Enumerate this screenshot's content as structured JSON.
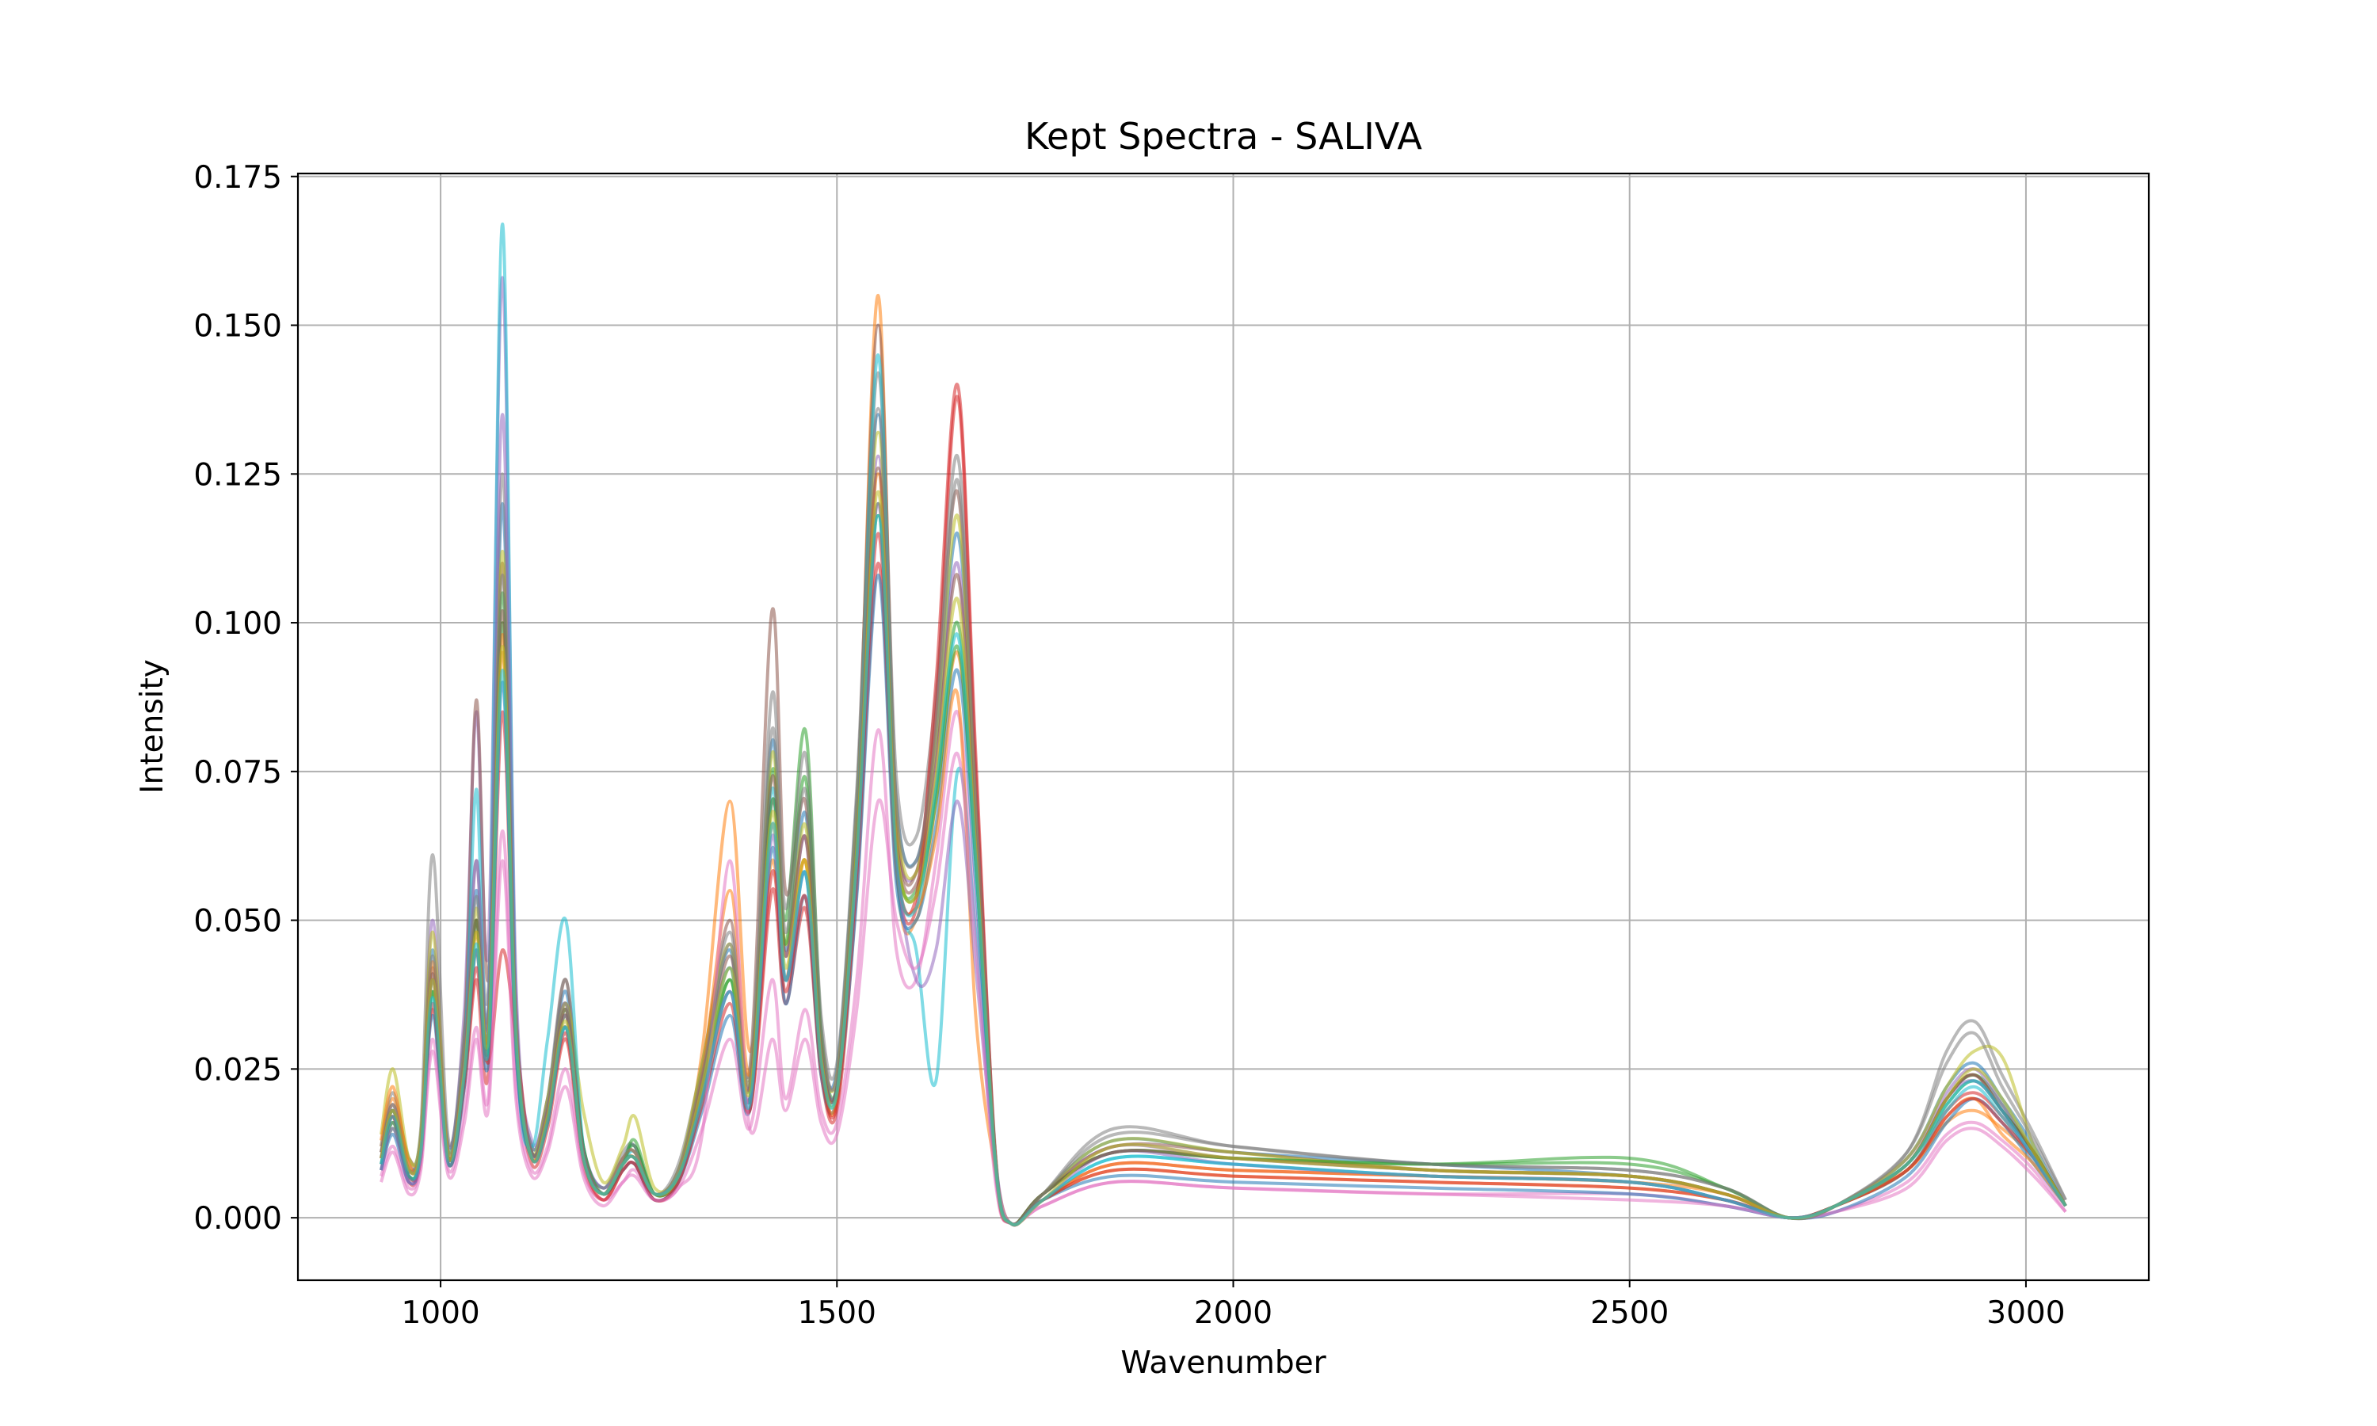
{
  "chart_data": {
    "type": "line",
    "title": "Kept Spectra - SALIVA",
    "xlabel": "Wavenumber",
    "ylabel": "Intensity",
    "xlim": [
      820,
      3155
    ],
    "ylim": [
      -0.0105,
      0.1755
    ],
    "xticks": [
      1000,
      1500,
      2000,
      2500,
      3000
    ],
    "xtick_labels": [
      "1000",
      "1500",
      "2000",
      "2500",
      "3000"
    ],
    "yticks": [
      0.0,
      0.025,
      0.05,
      0.075,
      0.1,
      0.125,
      0.15,
      0.175
    ],
    "ytick_labels": [
      "0.000",
      "0.025",
      "0.050",
      "0.075",
      "0.100",
      "0.125",
      "0.150",
      "0.175"
    ],
    "grid": true,
    "legend": false,
    "series_opacity": 0.55,
    "x": [
      925,
      940,
      960,
      975,
      990,
      1010,
      1030,
      1045,
      1060,
      1078,
      1095,
      1115,
      1135,
      1158,
      1180,
      1205,
      1230,
      1245,
      1270,
      1300,
      1330,
      1365,
      1390,
      1418,
      1435,
      1460,
      1480,
      1500,
      1525,
      1552,
      1575,
      1600,
      1625,
      1652,
      1675,
      1700,
      1720,
      1760,
      1850,
      2000,
      2250,
      2500,
      2620,
      2700,
      2760,
      2850,
      2900,
      2935,
      2970,
      3010,
      3050
    ],
    "series": [
      {
        "color": "#1f77b4",
        "values": [
          0.01,
          0.018,
          0.008,
          0.014,
          0.045,
          0.012,
          0.03,
          0.055,
          0.035,
          0.12,
          0.035,
          0.012,
          0.02,
          0.038,
          0.012,
          0.005,
          0.01,
          0.012,
          0.004,
          0.008,
          0.025,
          0.045,
          0.02,
          0.08,
          0.045,
          0.068,
          0.03,
          0.025,
          0.07,
          0.135,
          0.07,
          0.06,
          0.08,
          0.115,
          0.07,
          0.01,
          -0.001,
          0.004,
          0.013,
          0.011,
          0.009,
          0.007,
          0.004,
          0.0,
          0.002,
          0.01,
          0.022,
          0.026,
          0.02,
          0.012,
          0.002
        ]
      },
      {
        "color": "#ff7f0e",
        "values": [
          0.012,
          0.02,
          0.01,
          0.012,
          0.04,
          0.01,
          0.025,
          0.045,
          0.028,
          0.095,
          0.03,
          0.01,
          0.018,
          0.032,
          0.01,
          0.004,
          0.009,
          0.01,
          0.003,
          0.007,
          0.028,
          0.07,
          0.028,
          0.06,
          0.04,
          0.06,
          0.026,
          0.02,
          0.065,
          0.155,
          0.06,
          0.05,
          0.07,
          0.095,
          0.06,
          0.008,
          -0.001,
          0.003,
          0.008,
          0.007,
          0.006,
          0.005,
          0.003,
          0.0,
          0.002,
          0.008,
          0.016,
          0.018,
          0.015,
          0.01,
          0.002
        ]
      },
      {
        "color": "#2ca02c",
        "values": [
          0.008,
          0.015,
          0.007,
          0.011,
          0.038,
          0.011,
          0.028,
          0.05,
          0.03,
          0.1,
          0.032,
          0.011,
          0.017,
          0.035,
          0.011,
          0.004,
          0.009,
          0.012,
          0.004,
          0.007,
          0.022,
          0.04,
          0.022,
          0.075,
          0.05,
          0.082,
          0.032,
          0.022,
          0.062,
          0.12,
          0.062,
          0.055,
          0.072,
          0.1,
          0.062,
          0.009,
          -0.001,
          0.004,
          0.011,
          0.01,
          0.009,
          0.01,
          0.005,
          0.0,
          0.002,
          0.009,
          0.02,
          0.024,
          0.019,
          0.011,
          0.002
        ]
      },
      {
        "color": "#d62728",
        "values": [
          0.01,
          0.017,
          0.006,
          0.01,
          0.035,
          0.009,
          0.022,
          0.04,
          0.024,
          0.085,
          0.028,
          0.009,
          0.015,
          0.03,
          0.009,
          0.003,
          0.008,
          0.009,
          0.003,
          0.006,
          0.02,
          0.038,
          0.018,
          0.055,
          0.036,
          0.052,
          0.024,
          0.018,
          0.055,
          0.11,
          0.058,
          0.052,
          0.085,
          0.138,
          0.075,
          0.01,
          -0.001,
          0.003,
          0.009,
          0.008,
          0.007,
          0.006,
          0.003,
          0.0,
          0.002,
          0.008,
          0.018,
          0.021,
          0.017,
          0.01,
          0.002
        ]
      },
      {
        "color": "#9467bd",
        "values": [
          0.009,
          0.016,
          0.008,
          0.013,
          0.05,
          0.012,
          0.035,
          0.085,
          0.045,
          0.158,
          0.04,
          0.013,
          0.02,
          0.036,
          0.012,
          0.005,
          0.01,
          0.011,
          0.004,
          0.008,
          0.024,
          0.042,
          0.022,
          0.07,
          0.044,
          0.064,
          0.03,
          0.024,
          0.066,
          0.128,
          0.066,
          0.058,
          0.078,
          0.11,
          0.066,
          0.01,
          -0.001,
          0.004,
          0.012,
          0.01,
          0.008,
          0.007,
          0.004,
          0.0,
          0.002,
          0.01,
          0.021,
          0.025,
          0.019,
          0.011,
          0.002
        ]
      },
      {
        "color": "#8c564b",
        "values": [
          0.011,
          0.019,
          0.009,
          0.012,
          0.042,
          0.01,
          0.03,
          0.087,
          0.04,
          0.11,
          0.034,
          0.011,
          0.018,
          0.04,
          0.011,
          0.004,
          0.009,
          0.01,
          0.004,
          0.007,
          0.025,
          0.05,
          0.025,
          0.102,
          0.055,
          0.07,
          0.03,
          0.022,
          0.068,
          0.15,
          0.068,
          0.058,
          0.085,
          0.122,
          0.068,
          0.01,
          -0.001,
          0.004,
          0.012,
          0.011,
          0.008,
          0.007,
          0.004,
          0.0,
          0.002,
          0.009,
          0.02,
          0.024,
          0.018,
          0.011,
          0.002
        ]
      },
      {
        "color": "#e377c2",
        "values": [
          0.007,
          0.012,
          0.005,
          0.009,
          0.03,
          0.008,
          0.018,
          0.032,
          0.02,
          0.065,
          0.022,
          0.008,
          0.012,
          0.025,
          0.008,
          0.003,
          0.006,
          0.008,
          0.003,
          0.005,
          0.015,
          0.03,
          0.015,
          0.04,
          0.02,
          0.035,
          0.018,
          0.016,
          0.04,
          0.082,
          0.045,
          0.04,
          0.06,
          0.085,
          0.05,
          0.007,
          -0.001,
          0.002,
          0.006,
          0.005,
          0.004,
          0.004,
          0.002,
          0.0,
          0.001,
          0.006,
          0.014,
          0.016,
          0.013,
          0.008,
          0.001
        ]
      },
      {
        "color": "#7f7f7f",
        "values": [
          0.012,
          0.021,
          0.01,
          0.015,
          0.061,
          0.013,
          0.032,
          0.06,
          0.038,
          0.125,
          0.036,
          0.012,
          0.02,
          0.04,
          0.012,
          0.005,
          0.011,
          0.012,
          0.004,
          0.009,
          0.026,
          0.048,
          0.024,
          0.088,
          0.052,
          0.078,
          0.034,
          0.026,
          0.072,
          0.142,
          0.074,
          0.064,
          0.088,
          0.128,
          0.074,
          0.011,
          -0.001,
          0.004,
          0.015,
          0.012,
          0.009,
          0.008,
          0.005,
          0.0,
          0.002,
          0.011,
          0.028,
          0.033,
          0.024,
          0.014,
          0.003
        ]
      },
      {
        "color": "#bcbd22",
        "values": [
          0.014,
          0.025,
          0.01,
          0.014,
          0.048,
          0.011,
          0.028,
          0.052,
          0.034,
          0.112,
          0.034,
          0.011,
          0.02,
          0.036,
          0.018,
          0.006,
          0.012,
          0.017,
          0.005,
          0.008,
          0.026,
          0.046,
          0.023,
          0.078,
          0.046,
          0.066,
          0.03,
          0.024,
          0.068,
          0.132,
          0.068,
          0.058,
          0.08,
          0.118,
          0.068,
          0.01,
          -0.001,
          0.004,
          0.013,
          0.011,
          0.008,
          0.007,
          0.004,
          0.0,
          0.002,
          0.01,
          0.022,
          0.028,
          0.027,
          0.012,
          0.002
        ]
      },
      {
        "color": "#17becf",
        "values": [
          0.01,
          0.018,
          0.007,
          0.011,
          0.04,
          0.01,
          0.026,
          0.072,
          0.032,
          0.167,
          0.034,
          0.012,
          0.03,
          0.05,
          0.012,
          0.004,
          0.009,
          0.011,
          0.004,
          0.007,
          0.022,
          0.042,
          0.02,
          0.072,
          0.04,
          0.058,
          0.026,
          0.022,
          0.064,
          0.145,
          0.06,
          0.045,
          0.023,
          0.075,
          0.048,
          0.008,
          -0.001,
          0.003,
          0.01,
          0.009,
          0.007,
          0.006,
          0.003,
          0.0,
          0.002,
          0.008,
          0.018,
          0.022,
          0.017,
          0.01,
          0.002
        ]
      },
      {
        "color": "#1f77b4",
        "values": [
          0.008,
          0.014,
          0.006,
          0.01,
          0.034,
          0.009,
          0.022,
          0.045,
          0.026,
          0.09,
          0.028,
          0.01,
          0.016,
          0.032,
          0.01,
          0.004,
          0.008,
          0.009,
          0.003,
          0.006,
          0.018,
          0.034,
          0.018,
          0.062,
          0.036,
          0.054,
          0.024,
          0.02,
          0.054,
          0.108,
          0.056,
          0.05,
          0.066,
          0.092,
          0.056,
          0.008,
          -0.001,
          0.003,
          0.007,
          0.006,
          0.005,
          0.004,
          0.002,
          0.0,
          0.001,
          0.007,
          0.016,
          0.02,
          0.016,
          0.009,
          0.002
        ]
      },
      {
        "color": "#ff7f0e",
        "values": [
          0.013,
          0.022,
          0.009,
          0.012,
          0.043,
          0.01,
          0.026,
          0.048,
          0.03,
          0.098,
          0.032,
          0.01,
          0.018,
          0.034,
          0.011,
          0.004,
          0.01,
          0.011,
          0.004,
          0.007,
          0.024,
          0.055,
          0.024,
          0.066,
          0.04,
          0.06,
          0.026,
          0.02,
          0.06,
          0.125,
          0.06,
          0.052,
          0.064,
          0.088,
          0.034,
          0.008,
          -0.001,
          0.003,
          0.009,
          0.008,
          0.007,
          0.006,
          0.004,
          0.0,
          0.002,
          0.008,
          0.017,
          0.02,
          0.014,
          0.009,
          0.002
        ]
      },
      {
        "color": "#2ca02c",
        "values": [
          0.009,
          0.016,
          0.007,
          0.011,
          0.038,
          0.01,
          0.024,
          0.05,
          0.029,
          0.105,
          0.031,
          0.011,
          0.017,
          0.034,
          0.012,
          0.004,
          0.009,
          0.013,
          0.004,
          0.007,
          0.021,
          0.04,
          0.02,
          0.07,
          0.046,
          0.074,
          0.03,
          0.022,
          0.062,
          0.118,
          0.062,
          0.054,
          0.07,
          0.096,
          0.06,
          0.009,
          -0.001,
          0.004,
          0.011,
          0.01,
          0.009,
          0.009,
          0.005,
          0.0,
          0.002,
          0.009,
          0.019,
          0.023,
          0.018,
          0.011,
          0.002
        ]
      },
      {
        "color": "#d62728",
        "values": [
          0.01,
          0.017,
          0.007,
          0.01,
          0.036,
          0.009,
          0.023,
          0.042,
          0.026,
          0.045,
          0.03,
          0.01,
          0.016,
          0.031,
          0.01,
          0.003,
          0.008,
          0.009,
          0.003,
          0.006,
          0.019,
          0.036,
          0.018,
          0.058,
          0.038,
          0.054,
          0.025,
          0.019,
          0.058,
          0.115,
          0.06,
          0.054,
          0.09,
          0.14,
          0.078,
          0.01,
          -0.001,
          0.003,
          0.008,
          0.007,
          0.006,
          0.005,
          0.003,
          0.0,
          0.002,
          0.008,
          0.017,
          0.02,
          0.016,
          0.01,
          0.002
        ]
      },
      {
        "color": "#9467bd",
        "values": [
          0.008,
          0.015,
          0.006,
          0.011,
          0.04,
          0.01,
          0.026,
          0.06,
          0.034,
          0.135,
          0.036,
          0.011,
          0.018,
          0.034,
          0.011,
          0.004,
          0.009,
          0.01,
          0.004,
          0.007,
          0.021,
          0.038,
          0.02,
          0.064,
          0.04,
          0.058,
          0.028,
          0.022,
          0.06,
          0.12,
          0.062,
          0.04,
          0.045,
          0.07,
          0.042,
          0.009,
          -0.001,
          0.003,
          0.011,
          0.009,
          0.007,
          0.006,
          0.003,
          0.0,
          0.002,
          0.009,
          0.02,
          0.023,
          0.018,
          0.01,
          0.002
        ]
      },
      {
        "color": "#8c564b",
        "values": [
          0.011,
          0.018,
          0.008,
          0.012,
          0.041,
          0.01,
          0.027,
          0.05,
          0.031,
          0.102,
          0.032,
          0.011,
          0.018,
          0.035,
          0.011,
          0.004,
          0.009,
          0.01,
          0.004,
          0.007,
          0.023,
          0.044,
          0.022,
          0.074,
          0.044,
          0.064,
          0.028,
          0.022,
          0.064,
          0.126,
          0.064,
          0.056,
          0.076,
          0.108,
          0.064,
          0.009,
          -0.001,
          0.004,
          0.011,
          0.01,
          0.008,
          0.007,
          0.004,
          0.0,
          0.002,
          0.009,
          0.02,
          0.024,
          0.018,
          0.011,
          0.002
        ]
      },
      {
        "color": "#e377c2",
        "values": [
          0.006,
          0.011,
          0.004,
          0.008,
          0.028,
          0.007,
          0.016,
          0.03,
          0.018,
          0.06,
          0.02,
          0.007,
          0.011,
          0.022,
          0.007,
          0.002,
          0.006,
          0.007,
          0.003,
          0.005,
          0.014,
          0.06,
          0.015,
          0.03,
          0.018,
          0.03,
          0.016,
          0.014,
          0.035,
          0.07,
          0.05,
          0.042,
          0.055,
          0.078,
          0.046,
          0.006,
          -0.001,
          0.002,
          0.006,
          0.005,
          0.004,
          0.003,
          0.002,
          0.0,
          0.001,
          0.005,
          0.013,
          0.015,
          0.012,
          0.007,
          0.001
        ]
      },
      {
        "color": "#7f7f7f",
        "values": [
          0.011,
          0.019,
          0.008,
          0.013,
          0.044,
          0.011,
          0.028,
          0.054,
          0.033,
          0.108,
          0.034,
          0.011,
          0.019,
          0.036,
          0.011,
          0.004,
          0.01,
          0.011,
          0.004,
          0.008,
          0.024,
          0.046,
          0.023,
          0.082,
          0.048,
          0.072,
          0.032,
          0.024,
          0.07,
          0.136,
          0.07,
          0.06,
          0.082,
          0.124,
          0.07,
          0.01,
          -0.001,
          0.004,
          0.014,
          0.012,
          0.009,
          0.008,
          0.005,
          0.0,
          0.002,
          0.011,
          0.026,
          0.031,
          0.022,
          0.013,
          0.003
        ]
      },
      {
        "color": "#bcbd22",
        "values": [
          0.01,
          0.018,
          0.008,
          0.012,
          0.04,
          0.01,
          0.025,
          0.048,
          0.03,
          0.096,
          0.031,
          0.01,
          0.017,
          0.033,
          0.01,
          0.004,
          0.009,
          0.01,
          0.004,
          0.007,
          0.022,
          0.042,
          0.021,
          0.068,
          0.042,
          0.06,
          0.027,
          0.021,
          0.062,
          0.122,
          0.063,
          0.054,
          0.074,
          0.104,
          0.062,
          0.009,
          -0.001,
          0.003,
          0.012,
          0.01,
          0.008,
          0.007,
          0.004,
          0.0,
          0.002,
          0.009,
          0.02,
          0.025,
          0.02,
          0.011,
          0.002
        ]
      },
      {
        "color": "#17becf",
        "values": [
          0.009,
          0.017,
          0.007,
          0.011,
          0.037,
          0.009,
          0.024,
          0.046,
          0.028,
          0.092,
          0.03,
          0.01,
          0.016,
          0.032,
          0.01,
          0.004,
          0.009,
          0.01,
          0.004,
          0.007,
          0.02,
          0.038,
          0.019,
          0.066,
          0.04,
          0.058,
          0.026,
          0.021,
          0.06,
          0.118,
          0.06,
          0.052,
          0.072,
          0.098,
          0.06,
          0.009,
          -0.001,
          0.003,
          0.01,
          0.009,
          0.007,
          0.006,
          0.003,
          0.0,
          0.002,
          0.009,
          0.019,
          0.023,
          0.018,
          0.01,
          0.002
        ]
      }
    ]
  }
}
